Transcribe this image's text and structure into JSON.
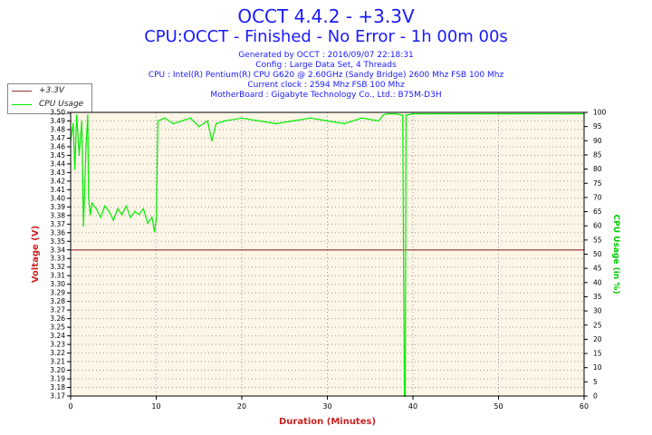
{
  "header": {
    "title": "OCCT 4.4.2 - +3.3V",
    "subtitle": "CPU:OCCT - Finished - No Error - 1h 00m 00s",
    "info": [
      "Generated by OCCT : 2016/09/07 22:18:31",
      "Config : Large Data Set, 4 Threads",
      "CPU : Intel(R) Pentium(R) CPU G620 @ 2.60GHz (Sandy Bridge) 2600 Mhz FSB 100 Mhz",
      "Current clock : 2594 Mhz FSB 100 Mhz",
      "MotherBoard : Gigabyte Technology Co., Ltd.: B75M-D3H"
    ]
  },
  "legend": {
    "items": [
      {
        "label": "+3.3V",
        "color": "#993333"
      },
      {
        "label": "CPU Usage",
        "color": "#00ee00"
      }
    ]
  },
  "chart_data": {
    "type": "line",
    "xlabel": "Duration (Minutes)",
    "ylabel": "Voltage (V)",
    "ylabel_right": "CPU Usage (in %)",
    "xlim": [
      0,
      60
    ],
    "ylim": [
      3.17,
      3.5
    ],
    "ylim_right": [
      0,
      100
    ],
    "x_ticks": [
      "0",
      "10",
      "20",
      "30",
      "40",
      "50",
      "60"
    ],
    "y_ticks": [
      "3.17",
      "3.18",
      "3.19",
      "3.20",
      "3.21",
      "3.22",
      "3.23",
      "3.24",
      "3.25",
      "3.26",
      "3.27",
      "3.28",
      "3.29",
      "3.30",
      "3.31",
      "3.32",
      "3.33",
      "3.34",
      "3.35",
      "3.36",
      "3.37",
      "3.38",
      "3.39",
      "3.40",
      "3.41",
      "3.42",
      "3.43",
      "3.44",
      "3.45",
      "3.46",
      "3.47",
      "3.48",
      "3.49",
      "3.50"
    ],
    "y_ticks_right": [
      "0",
      "5",
      "10",
      "15",
      "20",
      "25",
      "30",
      "35",
      "40",
      "45",
      "50",
      "55",
      "60",
      "65",
      "70",
      "75",
      "80",
      "85",
      "90",
      "95",
      "100"
    ],
    "grid": true,
    "colors": {
      "voltage": "#993333",
      "cpu": "#00ee00",
      "axis_label": "#cc2222",
      "right_label": "#00cc00",
      "plot_bg": "#fdf5e6"
    },
    "series": [
      {
        "name": "+3.3V",
        "axis": "left",
        "x": [
          0,
          60
        ],
        "values": [
          3.34,
          3.34
        ]
      },
      {
        "name": "CPU Usage",
        "axis": "right",
        "x": [
          0.0,
          0.3,
          0.5,
          0.7,
          1.0,
          1.3,
          1.5,
          1.8,
          2.0,
          2.1,
          2.3,
          2.5,
          3.0,
          3.5,
          4.0,
          4.5,
          5.0,
          5.5,
          6.0,
          6.5,
          7.0,
          7.5,
          8.0,
          8.5,
          9.0,
          9.5,
          9.8,
          10.0,
          10.2,
          11,
          12,
          13,
          14,
          15,
          16,
          16.5,
          17,
          18,
          20,
          22,
          24,
          26,
          28,
          30,
          32,
          34,
          36,
          36.5,
          37,
          38,
          38.8,
          38.9,
          39.0,
          39.1,
          39.2,
          40,
          42,
          45,
          48,
          50,
          52,
          55,
          58,
          60
        ],
        "values": [
          90,
          96,
          80,
          99,
          85,
          97,
          60,
          88,
          99,
          70,
          64,
          68,
          66,
          63,
          67,
          65,
          62,
          66,
          64,
          67,
          63,
          65,
          64,
          66,
          61,
          63,
          58,
          62,
          97,
          98,
          96,
          97,
          98,
          95,
          97,
          90,
          96,
          97,
          98,
          97,
          96,
          97,
          98,
          97,
          96,
          98,
          97,
          99,
          99.5,
          99.5,
          99,
          50,
          0,
          0,
          99,
          99.5,
          99.5,
          99.5,
          99.5,
          99.5,
          99.5,
          99.5,
          99.5,
          99.5
        ]
      }
    ]
  }
}
